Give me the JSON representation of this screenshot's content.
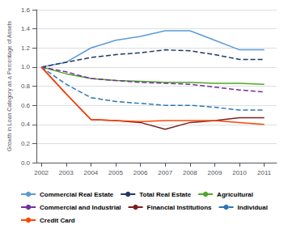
{
  "chart_data": {
    "type": "line",
    "ylabel": "Growth in Loan Category as a Percentage of Assets",
    "x": [
      2002,
      2003,
      2004,
      2005,
      2006,
      2007,
      2008,
      2009,
      2010,
      2011
    ],
    "xlim": [
      2001.8,
      2011.5
    ],
    "xticks": [
      2002,
      2003,
      2004,
      2005,
      2006,
      2007,
      2008,
      2009,
      2010,
      2011
    ],
    "ylim": [
      0,
      1.6
    ],
    "yticks": [
      {
        "value": 0,
        "label": "0.0"
      },
      0.2,
      0.4,
      0.6,
      0.8,
      {
        "value": 1.0,
        "label": "1.0"
      },
      1.2,
      1.4,
      1.6
    ],
    "grid": true,
    "legend": "bottom",
    "series": [
      {
        "name": "Commercial Real Estate",
        "color": "#5B9BD5",
        "line_style": "solid",
        "values": [
          1.0,
          1.05,
          1.2,
          1.28,
          1.32,
          1.38,
          1.38,
          1.28,
          1.18,
          1.18
        ]
      },
      {
        "name": "Total Real Estate",
        "color": "#203864",
        "line_style": "dashed",
        "values": [
          1.0,
          1.05,
          1.1,
          1.13,
          1.15,
          1.18,
          1.17,
          1.13,
          1.08,
          1.08
        ]
      },
      {
        "name": "Agricultural",
        "color": "#4EA72A",
        "line_style": "solid",
        "values": [
          1.0,
          0.93,
          0.88,
          0.86,
          0.85,
          0.84,
          0.84,
          0.83,
          0.83,
          0.82
        ]
      },
      {
        "name": "Commercial and Industrial",
        "color": "#7030A0",
        "line_style": "dashed",
        "values": [
          1.0,
          0.95,
          0.88,
          0.86,
          0.84,
          0.83,
          0.82,
          0.79,
          0.76,
          0.74
        ]
      },
      {
        "name": "Financial Institutions",
        "color": "#7B2020",
        "line_style": "solid",
        "values": [
          1.0,
          0.72,
          0.45,
          0.44,
          0.42,
          0.35,
          0.42,
          0.44,
          0.47,
          0.47
        ]
      },
      {
        "name": "Individual",
        "color": "#2E75B6",
        "line_style": "dashed",
        "values": [
          1.0,
          0.82,
          0.68,
          0.64,
          0.62,
          0.6,
          0.6,
          0.58,
          0.55,
          0.55
        ]
      },
      {
        "name": "Credit Card",
        "color": "#FF4500",
        "line_style": "solid",
        "values": [
          1.0,
          0.72,
          0.45,
          0.44,
          0.43,
          0.44,
          0.44,
          0.44,
          0.42,
          0.4
        ]
      }
    ]
  }
}
